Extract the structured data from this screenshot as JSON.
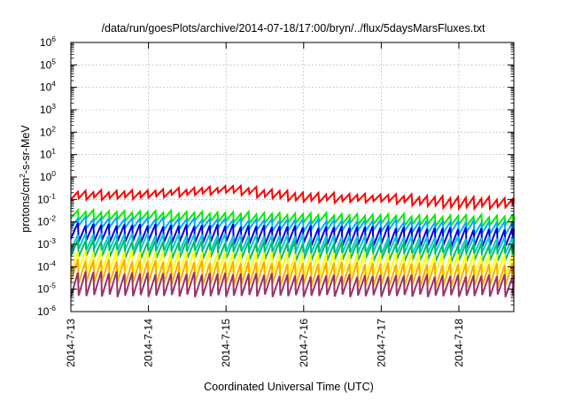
{
  "chart_data": {
    "type": "line",
    "title": "/data/run/goesPlots/archive/2014-07-18/17:00/bryn/../flux/5daysMarsFluxes.txt",
    "xlabel": "Coordinated Universal Time (UTC)",
    "ylabel": {
      "pre": "protons/cm",
      "sup": "2",
      "post": "-s-sr-MeV"
    },
    "y_scale": "log",
    "ylim": [
      1e-06,
      1000000.0
    ],
    "y_ticks": [
      {
        "value": 1e-06,
        "base": "10",
        "exp": "-6"
      },
      {
        "value": 1e-05,
        "base": "10",
        "exp": "-5"
      },
      {
        "value": 0.0001,
        "base": "10",
        "exp": "-4"
      },
      {
        "value": 0.001,
        "base": "10",
        "exp": "-3"
      },
      {
        "value": 0.01,
        "base": "10",
        "exp": "-2"
      },
      {
        "value": 0.1,
        "base": "10",
        "exp": "-1"
      },
      {
        "value": 1.0,
        "base": "10",
        "exp": "0"
      },
      {
        "value": 10.0,
        "base": "10",
        "exp": "1"
      },
      {
        "value": 100.0,
        "base": "10",
        "exp": "2"
      },
      {
        "value": 1000.0,
        "base": "10",
        "exp": "3"
      },
      {
        "value": 10000.0,
        "base": "10",
        "exp": "4"
      },
      {
        "value": 100000.0,
        "base": "10",
        "exp": "5"
      },
      {
        "value": 1000000.0,
        "base": "10",
        "exp": "6"
      }
    ],
    "xlim": [
      "2014-07-13T00:00",
      "2014-07-18T17:00"
    ],
    "x_ticks": [
      {
        "value": "2014-07-13T00:00",
        "label": "2014-7-13"
      },
      {
        "value": "2014-07-14T00:00",
        "label": "2014-7-14"
      },
      {
        "value": "2014-07-15T00:00",
        "label": "2014-7-15"
      },
      {
        "value": "2014-07-16T00:00",
        "label": "2014-7-16"
      },
      {
        "value": "2014-07-17T00:00",
        "label": "2014-7-17"
      },
      {
        "value": "2014-07-18T00:00",
        "label": "2014-7-18"
      }
    ],
    "grid": true,
    "legend": "none",
    "series_shape": "sawtooth, about 10 cycles per day, each ramping from the low value up to the high value and then dropping sharply",
    "series": [
      {
        "color": "#ff0000",
        "low": [
          0.1,
          0.12,
          0.2,
          0.08,
          0.08,
          0.04,
          0.05
        ],
        "high": [
          0.22,
          0.25,
          0.4,
          0.18,
          0.16,
          0.12,
          0.1
        ]
      },
      {
        "color": "#00ee00",
        "low": [
          0.013,
          0.012,
          0.01,
          0.009,
          0.008,
          0.007,
          0.007
        ],
        "high": [
          0.03,
          0.028,
          0.025,
          0.022,
          0.02,
          0.018,
          0.018
        ]
      },
      {
        "color": "#00aaff",
        "low": [
          0.006,
          0.005,
          0.005,
          0.004,
          0.004,
          0.003,
          0.003
        ],
        "high": [
          0.015,
          0.014,
          0.013,
          0.012,
          0.011,
          0.01,
          0.01
        ]
      },
      {
        "color": "#0000ee",
        "low": [
          0.0015,
          0.0012,
          0.0011,
          0.001,
          0.0009,
          0.0008,
          0.0008
        ],
        "high": [
          0.008,
          0.007,
          0.007,
          0.006,
          0.006,
          0.005,
          0.005
        ]
      },
      {
        "color": "#00cccc",
        "low": [
          0.0006,
          0.0005,
          0.0005,
          0.0004,
          0.0004,
          0.0004,
          0.0004
        ],
        "high": [
          0.003,
          0.0028,
          0.0026,
          0.0024,
          0.0022,
          0.002,
          0.002
        ]
      },
      {
        "color": "#00bb66",
        "low": [
          0.0003,
          0.00025,
          0.00022,
          0.0002,
          0.0002,
          0.00018,
          0.00018
        ],
        "high": [
          0.0015,
          0.0014,
          0.0013,
          0.0012,
          0.0011,
          0.001,
          0.001
        ]
      },
      {
        "color": "#ffff00",
        "low": [
          6e-05,
          5e-05,
          5e-05,
          4e-05,
          4e-05,
          4e-05,
          4e-05
        ],
        "high": [
          0.0005,
          0.0005,
          0.00045,
          0.0004,
          0.0004,
          0.00035,
          0.00035
        ]
      },
      {
        "color": "#ffaa00",
        "low": [
          2e-05,
          1.8e-05,
          1.6e-05,
          1.5e-05,
          1.4e-05,
          1.3e-05,
          1.3e-05
        ],
        "high": [
          0.0002,
          0.00018,
          0.00016,
          0.00015,
          0.00014,
          0.00013,
          0.00013
        ]
      },
      {
        "color": "#993366",
        "low": [
          5e-06,
          5e-06,
          5e-06,
          5e-06,
          5e-06,
          5e-06,
          5e-06
        ],
        "high": [
          6e-05,
          5e-05,
          5e-05,
          4e-05,
          4e-05,
          4e-05,
          4e-05
        ]
      }
    ]
  }
}
